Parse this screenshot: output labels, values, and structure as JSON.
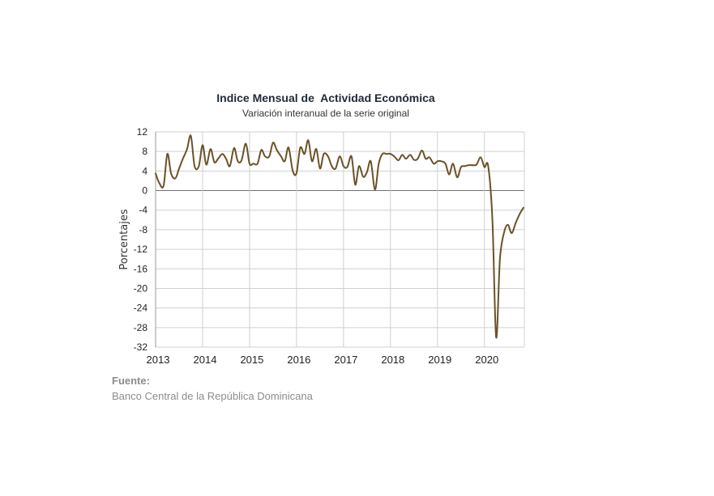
{
  "chart_data": {
    "type": "line",
    "title": "Indice Mensual de  Actividad Económica",
    "subtitle": "Variación interanual de la serie original",
    "xlabel": "",
    "ylabel": "Porcentajes",
    "ylim": [
      -32,
      12
    ],
    "yticks": [
      12,
      8,
      4,
      0,
      -4,
      -8,
      -12,
      -16,
      -20,
      -24,
      -28,
      -32
    ],
    "xlim": [
      2013,
      2020.85
    ],
    "xticks": [
      2013,
      2014,
      2015,
      2016,
      2017,
      2018,
      2019,
      2020
    ],
    "grid": true,
    "legend": "none",
    "line_color": "#6b5227",
    "series": [
      {
        "name": "",
        "x": [
          2013.0,
          2013.08,
          2013.17,
          2013.25,
          2013.33,
          2013.42,
          2013.5,
          2013.58,
          2013.67,
          2013.75,
          2013.83,
          2013.92,
          2014.0,
          2014.08,
          2014.17,
          2014.25,
          2014.33,
          2014.42,
          2014.5,
          2014.58,
          2014.67,
          2014.75,
          2014.83,
          2014.92,
          2015.0,
          2015.08,
          2015.17,
          2015.25,
          2015.33,
          2015.42,
          2015.5,
          2015.58,
          2015.67,
          2015.75,
          2015.83,
          2015.92,
          2016.0,
          2016.08,
          2016.17,
          2016.25,
          2016.33,
          2016.42,
          2016.5,
          2016.58,
          2016.67,
          2016.75,
          2016.83,
          2016.92,
          2017.0,
          2017.08,
          2017.17,
          2017.25,
          2017.33,
          2017.42,
          2017.5,
          2017.58,
          2017.67,
          2017.75,
          2017.83,
          2017.92,
          2018.0,
          2018.08,
          2018.17,
          2018.25,
          2018.33,
          2018.42,
          2018.5,
          2018.58,
          2018.67,
          2018.75,
          2018.83,
          2018.92,
          2019.0,
          2019.08,
          2019.17,
          2019.25,
          2019.33,
          2019.42,
          2019.5,
          2019.58,
          2019.67,
          2019.75,
          2019.83,
          2019.92,
          2020.0,
          2020.08,
          2020.17,
          2020.25,
          2020.33,
          2020.42,
          2020.5,
          2020.58,
          2020.67,
          2020.75,
          2020.83
        ],
        "y": [
          3.5,
          1.5,
          1.0,
          7.5,
          3.5,
          2.5,
          4.5,
          6.5,
          8.5,
          11.2,
          5.0,
          5.0,
          9.3,
          5.3,
          8.5,
          5.8,
          6.5,
          7.5,
          6.5,
          5.0,
          8.7,
          6.0,
          6.2,
          9.6,
          5.5,
          5.5,
          5.5,
          8.3,
          7.0,
          7.0,
          9.8,
          8.3,
          7.0,
          6.0,
          8.8,
          4.0,
          3.6,
          8.8,
          7.5,
          10.3,
          6.0,
          8.5,
          4.5,
          7.5,
          7.0,
          5.0,
          4.5,
          7.0,
          5.0,
          4.8,
          7.0,
          1.2,
          5.0,
          2.8,
          3.8,
          6.0,
          0.2,
          5.5,
          7.5,
          7.5,
          7.5,
          7.0,
          6.2,
          7.3,
          6.5,
          7.3,
          6.3,
          6.5,
          8.2,
          6.5,
          6.8,
          5.5,
          6.0,
          6.0,
          5.5,
          3.3,
          5.5,
          2.7,
          4.8,
          5.0,
          5.2,
          5.2,
          5.3,
          6.8,
          4.8,
          5.0,
          -6.0,
          -30.0,
          -14.0,
          -8.5,
          -7.0,
          -8.7,
          -6.5,
          -4.8,
          -3.5
        ]
      }
    ]
  },
  "source": {
    "label": "Fuente:",
    "text": "Banco Central de la República Dominicana"
  }
}
